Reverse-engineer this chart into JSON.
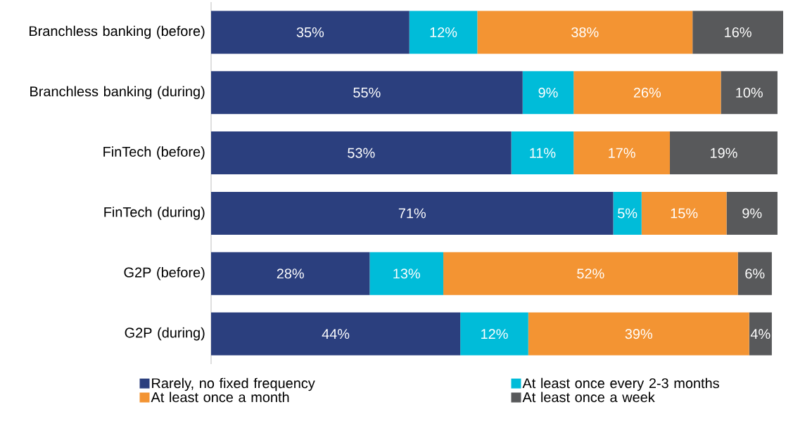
{
  "chart_data": {
    "type": "bar",
    "orientation": "horizontal",
    "stacked": true,
    "legend": "bottom",
    "categories": [
      "Branchless banking (before)",
      "Branchless banking (during)",
      "FinTech (before)",
      "FinTech (during)",
      "G2P (before)",
      "G2P (during)"
    ],
    "series": [
      {
        "name": "Rarely, no fixed frequency",
        "color": "#2b3f7e",
        "values": [
          35,
          55,
          53,
          71,
          28,
          44
        ],
        "value_labels": [
          "35%",
          "55%",
          "53%",
          "71%",
          "28%",
          "44%"
        ]
      },
      {
        "name": "At least once every 2-3 months",
        "color": "#00bcd9",
        "values": [
          12,
          9,
          11,
          5,
          13,
          12
        ],
        "value_labels": [
          "12%",
          "9%",
          "11%",
          "5%",
          "13%",
          "12%"
        ]
      },
      {
        "name": "At least once a month",
        "color": "#f39433",
        "values": [
          38,
          26,
          17,
          15,
          52,
          39
        ],
        "value_labels": [
          "38%",
          "26%",
          "17%",
          "15%",
          "52%",
          "39%"
        ]
      },
      {
        "name": "At least once a week",
        "color": "#58595b",
        "values": [
          16,
          10,
          19,
          9,
          6,
          4
        ],
        "value_labels": [
          "16%",
          "10%",
          "19%",
          "9%",
          "6%",
          "4%"
        ]
      }
    ]
  }
}
